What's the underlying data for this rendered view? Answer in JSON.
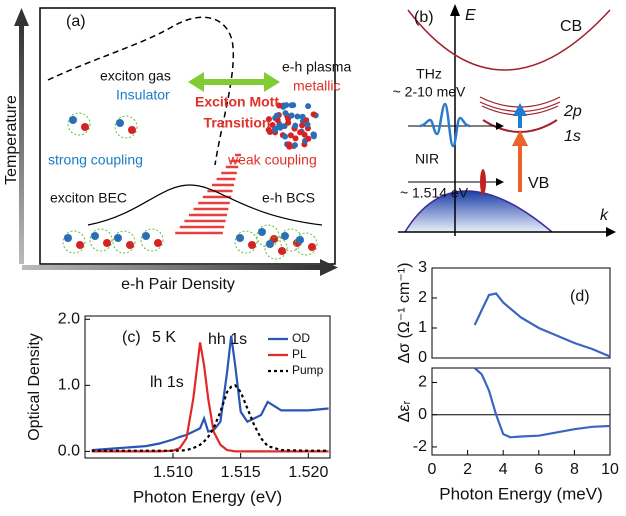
{
  "panel_a": {
    "label": "(a)",
    "y_axis": "Temperature",
    "x_axis": "e-h Pair Density",
    "exciton_gas": "exciton gas",
    "insulator": "Insulator",
    "mott_1": "Exciton Mott",
    "mott_2": "Transition",
    "plasma": "e-h plasma",
    "metallic": "metallic",
    "strong": "strong coupling",
    "weak": "weak coupling",
    "bec": "exciton BEC",
    "bcs": "e-h BCS"
  },
  "panel_b": {
    "label": "(b)",
    "energy": "E",
    "k": "k",
    "cb": "CB",
    "vb": "VB",
    "thz": "THz",
    "thz_range": "~ 2-10 meV",
    "nir": "NIR",
    "nir_energy": "~ 1.514 eV",
    "level_2p": "2p",
    "level_1s": "1s"
  },
  "chart_data": [
    {
      "type": "line",
      "xlabel": "Photon Energy (eV)",
      "ylabel": "Optical Density",
      "annotations": [
        "(c)",
        "5 K",
        "hh 1s",
        "lh 1s"
      ],
      "legend": "upper right",
      "x": [
        1.504,
        1.506,
        1.508,
        1.509,
        1.51,
        1.5105,
        1.511,
        1.5115,
        1.512,
        1.5123,
        1.5126,
        1.513,
        1.5135,
        1.514,
        1.5143,
        1.5146,
        1.515,
        1.5155,
        1.516,
        1.5165,
        1.517,
        1.518,
        1.52,
        1.5215
      ],
      "series": [
        {
          "name": "OD",
          "color": "#2a55b5",
          "style": "solid",
          "values": [
            0.02,
            0.05,
            0.08,
            0.12,
            0.18,
            0.22,
            0.25,
            0.3,
            0.35,
            0.5,
            0.3,
            0.32,
            0.45,
            1.2,
            1.75,
            1.3,
            0.6,
            0.45,
            0.5,
            0.55,
            0.75,
            0.62,
            0.62,
            0.65
          ]
        },
        {
          "name": "PL",
          "color": "#e02a2a",
          "style": "solid",
          "values": [
            0,
            0,
            0,
            0,
            0.01,
            0.05,
            0.2,
            0.8,
            1.65,
            1.3,
            0.8,
            0.3,
            0.1,
            0.02,
            0.01,
            0,
            0,
            0,
            0,
            0,
            0,
            0,
            0,
            0
          ]
        },
        {
          "name": "Pump",
          "color": "#000000",
          "style": "dotted",
          "values": [
            0.01,
            0.01,
            0.01,
            0.01,
            0.01,
            0.01,
            0.02,
            0.05,
            0.1,
            0.15,
            0.22,
            0.35,
            0.6,
            0.9,
            0.98,
            1.0,
            0.9,
            0.65,
            0.4,
            0.2,
            0.08,
            0.02,
            0.01,
            0.01
          ]
        }
      ],
      "xlim": [
        1.5035,
        1.5216
      ],
      "ylim": [
        -0.1,
        2.05
      ],
      "xticks": [
        {
          "value": 1.51,
          "label": "1.510"
        },
        1.515,
        {
          "value": 1.52,
          "label": "1.520"
        }
      ],
      "yticks": [
        {
          "value": 0,
          "label": "0.0"
        },
        {
          "value": 1,
          "label": "1.0"
        },
        {
          "value": 2,
          "label": "2.0"
        }
      ]
    },
    {
      "type": "line",
      "ylabel": "Δσ (Ω⁻¹ cm⁻¹)",
      "annotations": [
        "(d)"
      ],
      "x": [
        2.4,
        2.8,
        3.2,
        3.6,
        4,
        5,
        6,
        7,
        8,
        9,
        10
      ],
      "series": [
        {
          "color": "#3a66c0",
          "style": "solid",
          "values": [
            1.1,
            1.6,
            2.1,
            2.15,
            1.85,
            1.35,
            1.0,
            0.75,
            0.5,
            0.3,
            0.05
          ]
        }
      ],
      "xlim": [
        0,
        10
      ],
      "ylim": [
        0,
        3
      ],
      "yticks": [
        0,
        1,
        2,
        3
      ]
    },
    {
      "type": "line",
      "xlabel": "Photon Energy (meV)",
      "ylabel": "Δεᵣ",
      "zero_line": true,
      "x": [
        2.4,
        2.8,
        3.2,
        3.6,
        4,
        4.4,
        5,
        6,
        7,
        8,
        9,
        10
      ],
      "series": [
        {
          "color": "#3a66c0",
          "style": "solid",
          "values": [
            2.9,
            2.5,
            1.5,
            0,
            -1.2,
            -1.4,
            -1.35,
            -1.3,
            -1.1,
            -0.9,
            -0.75,
            -0.7
          ]
        }
      ],
      "xlim": [
        0,
        10
      ],
      "ylim": [
        -2.5,
        2.9
      ],
      "xticks": [
        0,
        2,
        4,
        6,
        8,
        10
      ],
      "yticks": [
        -2,
        0,
        2
      ]
    }
  ]
}
